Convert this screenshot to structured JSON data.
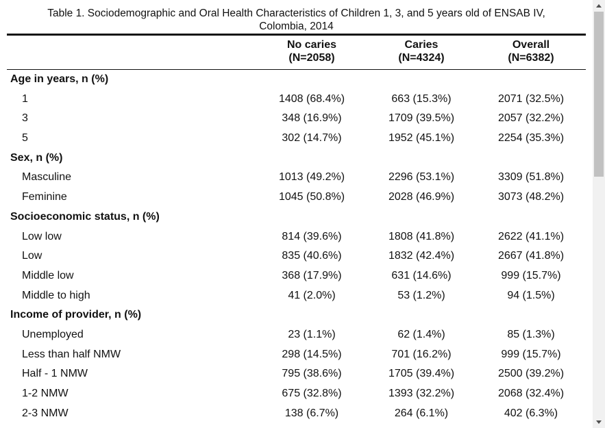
{
  "table": {
    "caption_line1": "Table 1. Sociodemographic and Oral Health Characteristics of Children 1, 3, and 5 years old of ENSAB IV,",
    "caption_line2": "Colombia, 2014",
    "columns": [
      {
        "name": "No caries",
        "n": "(N=2058)"
      },
      {
        "name": "Caries",
        "n": "(N=4324)"
      },
      {
        "name": "Overall",
        "n": "(N=6382)"
      }
    ],
    "rows": [
      {
        "label": "Age in years, n (%)",
        "values": [
          "",
          "",
          ""
        ]
      },
      {
        "label": "1",
        "values": [
          "1408 (68.4%)",
          "663 (15.3%)",
          "2071 (32.5%)"
        ]
      },
      {
        "label": "3",
        "values": [
          "348 (16.9%)",
          "1709 (39.5%)",
          "2057 (32.2%)"
        ]
      },
      {
        "label": "5",
        "values": [
          "302 (14.7%)",
          "1952 (45.1%)",
          "2254 (35.3%)"
        ]
      },
      {
        "label": "Sex, n (%)",
        "values": [
          "",
          "",
          ""
        ]
      },
      {
        "label": "Masculine",
        "values": [
          "1013 (49.2%)",
          "2296 (53.1%)",
          "3309 (51.8%)"
        ]
      },
      {
        "label": "Feminine",
        "values": [
          "1045 (50.8%)",
          "2028 (46.9%)",
          "3073 (48.2%)"
        ]
      },
      {
        "label": "Socioeconomic status, n (%)",
        "values": [
          "",
          "",
          ""
        ]
      },
      {
        "label": "Low low",
        "values": [
          "814 (39.6%)",
          "1808 (41.8%)",
          "2622 (41.1%)"
        ]
      },
      {
        "label": "Low",
        "values": [
          "835 (40.6%)",
          "1832 (42.4%)",
          "2667 (41.8%)"
        ]
      },
      {
        "label": "Middle low",
        "values": [
          "368 (17.9%)",
          "631 (14.6%)",
          "999 (15.7%)"
        ]
      },
      {
        "label": "Middle to high",
        "values": [
          "41 (2.0%)",
          "53 (1.2%)",
          "94 (1.5%)"
        ]
      },
      {
        "label": "Income of provider, n (%)",
        "values": [
          "",
          "",
          ""
        ]
      },
      {
        "label": "Unemployed",
        "values": [
          "23 (1.1%)",
          "62 (1.4%)",
          "85 (1.3%)"
        ]
      },
      {
        "label": "Less than half NMW",
        "values": [
          "298 (14.5%)",
          "701 (16.2%)",
          "999 (15.7%)"
        ]
      },
      {
        "label": "Half - 1 NMW",
        "values": [
          "795 (38.6%)",
          "1705 (39.4%)",
          "2500 (39.2%)"
        ]
      },
      {
        "label": "1-2 NMW",
        "values": [
          "675 (32.8%)",
          "1393 (32.2%)",
          "2068 (32.4%)"
        ]
      },
      {
        "label": "2-3 NMW",
        "values": [
          "138 (6.7%)",
          "264 (6.1%)",
          "402 (6.3%)"
        ]
      }
    ]
  }
}
